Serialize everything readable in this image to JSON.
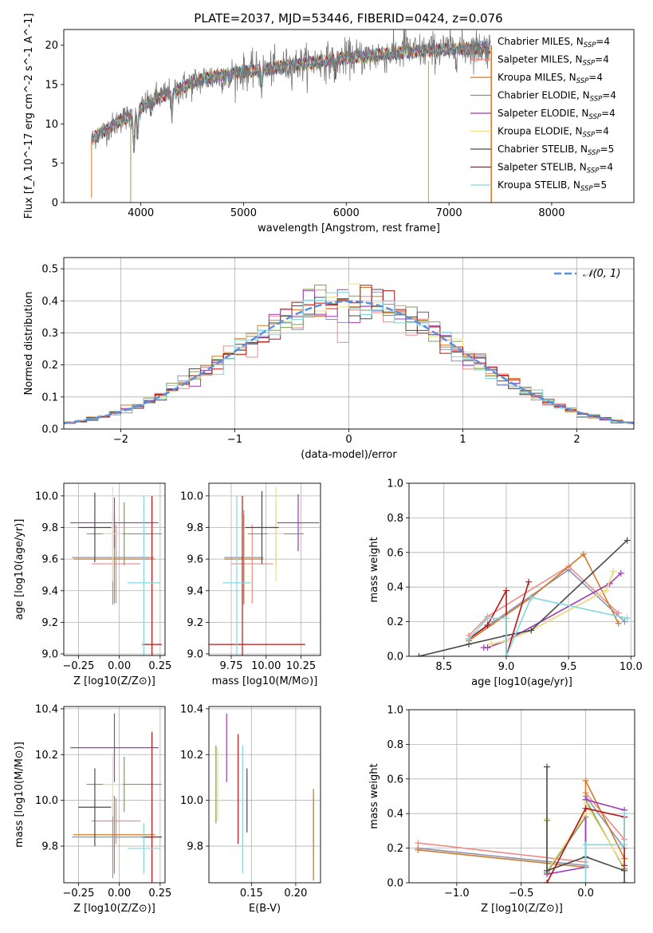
{
  "figure_title": "PLATE=2037, MJD=53446, FIBERID=0424, z=0.076",
  "colors": {
    "Chabrier MILES": "#8a94b4",
    "Salpeter MILES": "#f08a84",
    "Kroupa MILES": "#d07a2a",
    "Chabrier ELODIE": "#7d9e52",
    "Salpeter ELODIE": "#a03ab8",
    "Kroupa ELODIE": "#f0e088",
    "Chabrier STELIB": "#4a4a4a",
    "Salpeter STELIB": "#b81414",
    "Kroupa STELIB": "#80d8e0",
    "data": "#777777",
    "gauss": "#5b8fde",
    "grid": "#b0b0b0"
  },
  "chart_data": [
    {
      "id": "spectrum",
      "type": "line",
      "title": "PLATE=2037, MJD=53446, FIBERID=0424, z=0.076",
      "xlabel": "wavelength [Angstrom, rest frame]",
      "ylabel": "Flux [f_λ 10^-17 erg cm^-2 s^-1 A^-1]",
      "xlim": [
        3250,
        8800
      ],
      "ylim": [
        0,
        22
      ],
      "xticks": [
        4000,
        5000,
        6000,
        7000,
        8000
      ],
      "yticks": [
        0,
        5,
        10,
        15,
        20
      ],
      "grid": false,
      "legend_placement": "top-right",
      "legend": [
        {
          "base": "Chabrier MILES, N",
          "sub": "SSP",
          "tail": "=4"
        },
        {
          "base": "Salpeter MILES, N",
          "sub": "SSP",
          "tail": "=4"
        },
        {
          "base": "Kroupa MILES, N",
          "sub": "SSP",
          "tail": "=4"
        },
        {
          "base": "Chabrier ELODIE, N",
          "sub": "SSP",
          "tail": "=4"
        },
        {
          "base": "Salpeter ELODIE, N",
          "sub": "SSP",
          "tail": "=4"
        },
        {
          "base": "Kroupa ELODIE, N",
          "sub": "SSP",
          "tail": "=4"
        },
        {
          "base": "Chabrier STELIB, N",
          "sub": "SSP",
          "tail": "=5"
        },
        {
          "base": "Salpeter STELIB, N",
          "sub": "SSP",
          "tail": "=4"
        },
        {
          "base": "Kroupa STELIB, N",
          "sub": "SSP",
          "tail": "=5"
        }
      ],
      "continuum": {
        "x": [
          3520,
          3600,
          3700,
          3800,
          3900,
          4000,
          4100,
          4200,
          4300,
          4400,
          4500,
          4600,
          4800,
          5000,
          5200,
          5400,
          5600,
          5800,
          6000,
          6200,
          6400,
          6600,
          6800,
          7000,
          7200,
          7400
        ],
        "y": [
          8.0,
          8.8,
          9.5,
          10.5,
          11.0,
          12.0,
          13.0,
          13.5,
          14.0,
          14.6,
          15.2,
          15.7,
          16.2,
          16.6,
          16.9,
          17.3,
          17.7,
          18.0,
          18.4,
          18.6,
          18.9,
          19.1,
          19.3,
          19.5,
          19.6,
          19.7
        ]
      },
      "absorption_lines": [
        {
          "x": 3933,
          "depth": 4.5
        },
        {
          "x": 3968,
          "depth": 3.5
        },
        {
          "x": 4101,
          "depth": 1.6
        },
        {
          "x": 4304,
          "depth": 2.8
        },
        {
          "x": 4861,
          "depth": 1.3
        },
        {
          "x": 5175,
          "depth": 2.0
        },
        {
          "x": 5893,
          "depth": 2.0
        }
      ],
      "emission_lines": [
        {
          "x": 6563,
          "height": 3.0
        },
        {
          "x": 6584,
          "height": 1.5
        }
      ]
    },
    {
      "id": "residuals",
      "type": "line",
      "xlabel": "(data-model)/error",
      "ylabel": "Normed distribution",
      "xlim": [
        -2.5,
        2.5
      ],
      "ylim": [
        0,
        0.535
      ],
      "xticks": [
        -2,
        -1,
        0,
        1,
        2
      ],
      "yticks": [
        0.0,
        0.1,
        0.2,
        0.3,
        0.4,
        0.5
      ],
      "grid": true,
      "legend_placement": "top-right",
      "legend": [
        {
          "name": "𝒩(0, 1)"
        }
      ],
      "histogram_bins": {
        "start": -2.5,
        "width": 0.1,
        "count": 50
      }
    },
    {
      "id": "age_vs_Z",
      "type": "scatter",
      "xlabel": "Z [log10(Z/Z⊙)]",
      "ylabel": "age [log10(age/yr)]",
      "xlim": [
        -0.34,
        0.28
      ],
      "ylim": [
        8.99,
        10.08
      ],
      "xticks": [
        -0.25,
        0.0,
        0.25
      ],
      "yticks": [
        9.0,
        9.2,
        9.4,
        9.6,
        9.8,
        10.0
      ],
      "grid": true,
      "points": [
        {
          "series": "Chabrier MILES",
          "x": -0.04,
          "y": 9.61,
          "xerr": 0.25,
          "yerr": 0.3
        },
        {
          "series": "Salpeter MILES",
          "x": -0.02,
          "y": 9.57,
          "xerr": 0.15,
          "yerr": 0.25
        },
        {
          "series": "Kroupa MILES",
          "x": -0.03,
          "y": 9.6,
          "xerr": 0.25,
          "yerr": 0.28
        },
        {
          "series": "Chabrier ELODIE",
          "x": 0.03,
          "y": 9.76,
          "xerr": 0.23,
          "yerr": 0.2
        },
        {
          "series": "Salpeter ELODIE",
          "x": -0.03,
          "y": 9.83,
          "xerr": 0.27,
          "yerr": 0.16
        },
        {
          "series": "Kroupa ELODIE",
          "x": -0.04,
          "y": 9.76,
          "xerr": 0.06,
          "yerr": 0.3
        },
        {
          "series": "Chabrier STELIB",
          "x": -0.15,
          "y": 9.8,
          "xerr": 0.1,
          "yerr": 0.22
        },
        {
          "series": "Salpeter STELIB",
          "x": 0.2,
          "y": 9.06,
          "xerr": 0.06,
          "yerr": 0.94
        },
        {
          "series": "Kroupa STELIB",
          "x": 0.15,
          "y": 9.45,
          "xerr": 0.1,
          "yerr": 0.55
        }
      ]
    },
    {
      "id": "age_vs_mass",
      "type": "scatter",
      "xlabel": "mass [log10(M/M⊙)]",
      "ylabel": "",
      "xlim": [
        9.59,
        10.39
      ],
      "ylim": [
        8.99,
        10.08
      ],
      "xticks": [
        9.75,
        10.0,
        10.25
      ],
      "yticks": [
        9.0,
        9.2,
        9.4,
        9.6,
        9.8,
        10.0
      ],
      "grid": true,
      "points": [
        {
          "series": "Chabrier MILES",
          "x": 9.84,
          "y": 9.61,
          "xerr": 0.14,
          "yerr": 0.3
        },
        {
          "series": "Salpeter MILES",
          "x": 9.9,
          "y": 9.57,
          "xerr": 0.15,
          "yerr": 0.25
        },
        {
          "series": "Kroupa MILES",
          "x": 9.84,
          "y": 9.6,
          "xerr": 0.14,
          "yerr": 0.28
        },
        {
          "series": "Chabrier ELODIE",
          "x": 10.07,
          "y": 9.76,
          "xerr": 0.2,
          "yerr": 0.2
        },
        {
          "series": "Salpeter ELODIE",
          "x": 10.23,
          "y": 9.83,
          "xerr": 0.15,
          "yerr": 0.18
        },
        {
          "series": "Kroupa ELODIE",
          "x": 10.07,
          "y": 9.76,
          "xerr": 0.06,
          "yerr": 0.3
        },
        {
          "series": "Chabrier STELIB",
          "x": 9.97,
          "y": 9.8,
          "xerr": 0.12,
          "yerr": 0.23
        },
        {
          "series": "Salpeter STELIB",
          "x": 9.83,
          "y": 9.06,
          "xerr": 0.45,
          "yerr": 0.94
        },
        {
          "series": "Kroupa STELIB",
          "x": 9.79,
          "y": 9.45,
          "xerr": 0.1,
          "yerr": 0.55
        }
      ]
    },
    {
      "id": "weight_vs_age",
      "type": "line",
      "xlabel": "age [log10(age/yr)]",
      "ylabel": "mass weight",
      "xlim": [
        8.22,
        10.03
      ],
      "ylim": [
        0,
        1.0
      ],
      "xticks": [
        8.5,
        9.0,
        9.5,
        10.0
      ],
      "yticks": [
        0.0,
        0.2,
        0.4,
        0.6,
        0.8,
        1.0
      ],
      "grid": true,
      "series": [
        {
          "name": "Chabrier MILES",
          "x": [
            8.7,
            8.9,
            9.5,
            9.95
          ],
          "y": [
            0.1,
            0.2,
            0.5,
            0.2
          ]
        },
        {
          "name": "Salpeter MILES",
          "x": [
            8.7,
            8.85,
            9.5,
            9.9
          ],
          "y": [
            0.12,
            0.23,
            0.52,
            0.25
          ]
        },
        {
          "name": "Kroupa MILES",
          "x": [
            8.7,
            9.2,
            9.62,
            9.9
          ],
          "y": [
            0.09,
            0.34,
            0.59,
            0.19
          ]
        },
        {
          "name": "Chabrier ELODIE",
          "x": [
            8.88,
            9.0,
            9.2,
            9.8,
            9.86
          ],
          "y": [
            0.07,
            0.09,
            0.15,
            0.38,
            0.49
          ]
        },
        {
          "name": "Salpeter ELODIE",
          "x": [
            8.82,
            8.85,
            9.0,
            9.83,
            9.92
          ],
          "y": [
            0.05,
            0.05,
            0.09,
            0.42,
            0.48
          ]
        },
        {
          "name": "Kroupa ELODIE",
          "x": [
            8.88,
            9.0,
            9.2,
            9.8,
            9.86
          ],
          "y": [
            0.07,
            0.09,
            0.15,
            0.38,
            0.49
          ]
        },
        {
          "name": "Chabrier STELIB",
          "x": [
            8.3,
            8.7,
            9.0,
            9.2,
            9.97
          ],
          "y": [
            0.0,
            0.07,
            0.12,
            0.15,
            0.67
          ]
        },
        {
          "name": "Salpeter STELIB",
          "x": [
            8.7,
            8.85,
            9.0,
            9.0,
            9.18
          ],
          "y": [
            0.1,
            0.18,
            0.38,
            0.0,
            0.43
          ]
        },
        {
          "name": "Kroupa STELIB",
          "x": [
            8.7,
            8.85,
            9.0,
            9.0,
            9.2,
            9.97
          ],
          "y": [
            0.1,
            0.22,
            0.22,
            0.0,
            0.34,
            0.22
          ]
        }
      ]
    },
    {
      "id": "mass_vs_Z",
      "type": "scatter",
      "xlabel": "Z [log10(Z/Z⊙)]",
      "ylabel": "mass [log10(M/M⊙)]",
      "xlim": [
        -0.34,
        0.28
      ],
      "ylim": [
        9.64,
        10.41
      ],
      "xticks": [
        -0.25,
        0.0,
        0.25
      ],
      "yticks": [
        9.8,
        10.0,
        10.2,
        10.4
      ],
      "grid": true,
      "points": [
        {
          "series": "Chabrier MILES",
          "x": -0.04,
          "y": 9.84,
          "xerr": 0.25,
          "yerr": 0.18
        },
        {
          "series": "Salpeter MILES",
          "x": -0.02,
          "y": 9.91,
          "xerr": 0.15,
          "yerr": 0.1
        },
        {
          "series": "Kroupa MILES",
          "x": -0.03,
          "y": 9.85,
          "xerr": 0.25,
          "yerr": 0.17
        },
        {
          "series": "Chabrier ELODIE",
          "x": 0.03,
          "y": 10.07,
          "xerr": 0.23,
          "yerr": 0.12
        },
        {
          "series": "Salpeter ELODIE",
          "x": -0.03,
          "y": 10.23,
          "xerr": 0.27,
          "yerr": 0.15
        },
        {
          "series": "Kroupa ELODIE",
          "x": -0.04,
          "y": 10.07,
          "xerr": 0.06,
          "yerr": 0.14
        },
        {
          "series": "Chabrier STELIB",
          "x": -0.15,
          "y": 9.97,
          "xerr": 0.1,
          "yerr": 0.17
        },
        {
          "series": "Salpeter STELIB",
          "x": 0.2,
          "y": 9.84,
          "xerr": 0.06,
          "yerr": 0.46
        },
        {
          "series": "Kroupa STELIB",
          "x": 0.15,
          "y": 9.79,
          "xerr": 0.1,
          "yerr": 0.11
        }
      ]
    },
    {
      "id": "mass_vs_EBV",
      "type": "scatter",
      "xlabel": "E(B-V)",
      "ylabel": "",
      "xlim": [
        0.102,
        0.228
      ],
      "ylim": [
        9.64,
        10.41
      ],
      "xticks": [
        0.15,
        0.2
      ],
      "yticks": [
        9.8,
        10.0,
        10.2,
        10.4
      ],
      "grid": true,
      "points": [
        {
          "series": "Chabrier MILES",
          "x": 0.22,
          "y": 9.84,
          "xerr": 0,
          "yerr": 0.18
        },
        {
          "series": "Salpeter MILES",
          "x": 0.22,
          "y": 9.91,
          "xerr": 0,
          "yerr": 0.14
        },
        {
          "series": "Kroupa MILES",
          "x": 0.22,
          "y": 9.85,
          "xerr": 0,
          "yerr": 0.2
        },
        {
          "series": "Chabrier ELODIE",
          "x": 0.11,
          "y": 10.07,
          "xerr": 0,
          "yerr": 0.17
        },
        {
          "series": "Salpeter ELODIE",
          "x": 0.122,
          "y": 10.23,
          "xerr": 0,
          "yerr": 0.15
        },
        {
          "series": "Kroupa ELODIE",
          "x": 0.112,
          "y": 10.07,
          "xerr": 0,
          "yerr": 0.16
        },
        {
          "series": "Chabrier STELIB",
          "x": 0.145,
          "y": 10.0,
          "xerr": 0,
          "yerr": 0.14
        },
        {
          "series": "Salpeter STELIB",
          "x": 0.135,
          "y": 10.05,
          "xerr": 0,
          "yerr": 0.24
        },
        {
          "series": "Kroupa STELIB",
          "x": 0.14,
          "y": 9.96,
          "xerr": 0,
          "yerr": 0.28
        }
      ]
    },
    {
      "id": "weight_vs_Z",
      "type": "line",
      "xlabel": "Z [log10(Z/Z⊙)]",
      "ylabel": "mass weight",
      "xlim": [
        -1.37,
        0.38
      ],
      "ylim": [
        0,
        1.0
      ],
      "xticks": [
        -1.0,
        -0.5,
        0.0
      ],
      "yticks": [
        0.0,
        0.2,
        0.4,
        0.6,
        0.8,
        1.0
      ],
      "grid": true,
      "series": [
        {
          "name": "Chabrier MILES",
          "x": [
            -1.3,
            0.0,
            0.0,
            0.3
          ],
          "y": [
            0.2,
            0.1,
            0.5,
            0.2
          ]
        },
        {
          "name": "Salpeter MILES",
          "x": [
            -1.3,
            0.0,
            0.0,
            0.3
          ],
          "y": [
            0.23,
            0.12,
            0.52,
            0.25
          ]
        },
        {
          "name": "Kroupa MILES",
          "x": [
            -1.3,
            0.0,
            0.0,
            0.3
          ],
          "y": [
            0.19,
            0.09,
            0.59,
            0.14
          ]
        },
        {
          "name": "Chabrier ELODIE",
          "x": [
            -0.3,
            -0.3,
            0.0,
            0.0,
            0.3
          ],
          "y": [
            0.36,
            0.06,
            0.38,
            0.48,
            0.08
          ]
        },
        {
          "name": "Salpeter ELODIE",
          "x": [
            -0.3,
            0.0,
            0.0,
            0.3
          ],
          "y": [
            0.05,
            0.09,
            0.48,
            0.42
          ]
        },
        {
          "name": "Kroupa ELODIE",
          "x": [
            -0.3,
            -0.3,
            0.0,
            0.0,
            0.3
          ],
          "y": [
            0.37,
            0.07,
            0.4,
            0.46,
            0.09
          ]
        },
        {
          "name": "Chabrier STELIB",
          "x": [
            -0.3,
            -0.3,
            0.0,
            0.3,
            0.3
          ],
          "y": [
            0.67,
            0.07,
            0.15,
            0.07,
            0.0
          ]
        },
        {
          "name": "Salpeter STELIB",
          "x": [
            -0.3,
            0.0,
            0.3,
            0.3
          ],
          "y": [
            0.0,
            0.43,
            0.38,
            0.1
          ]
        },
        {
          "name": "Kroupa STELIB",
          "x": [
            0.0,
            0.0,
            0.3,
            0.3
          ],
          "y": [
            0.0,
            0.22,
            0.22,
            0.4
          ]
        }
      ]
    }
  ]
}
